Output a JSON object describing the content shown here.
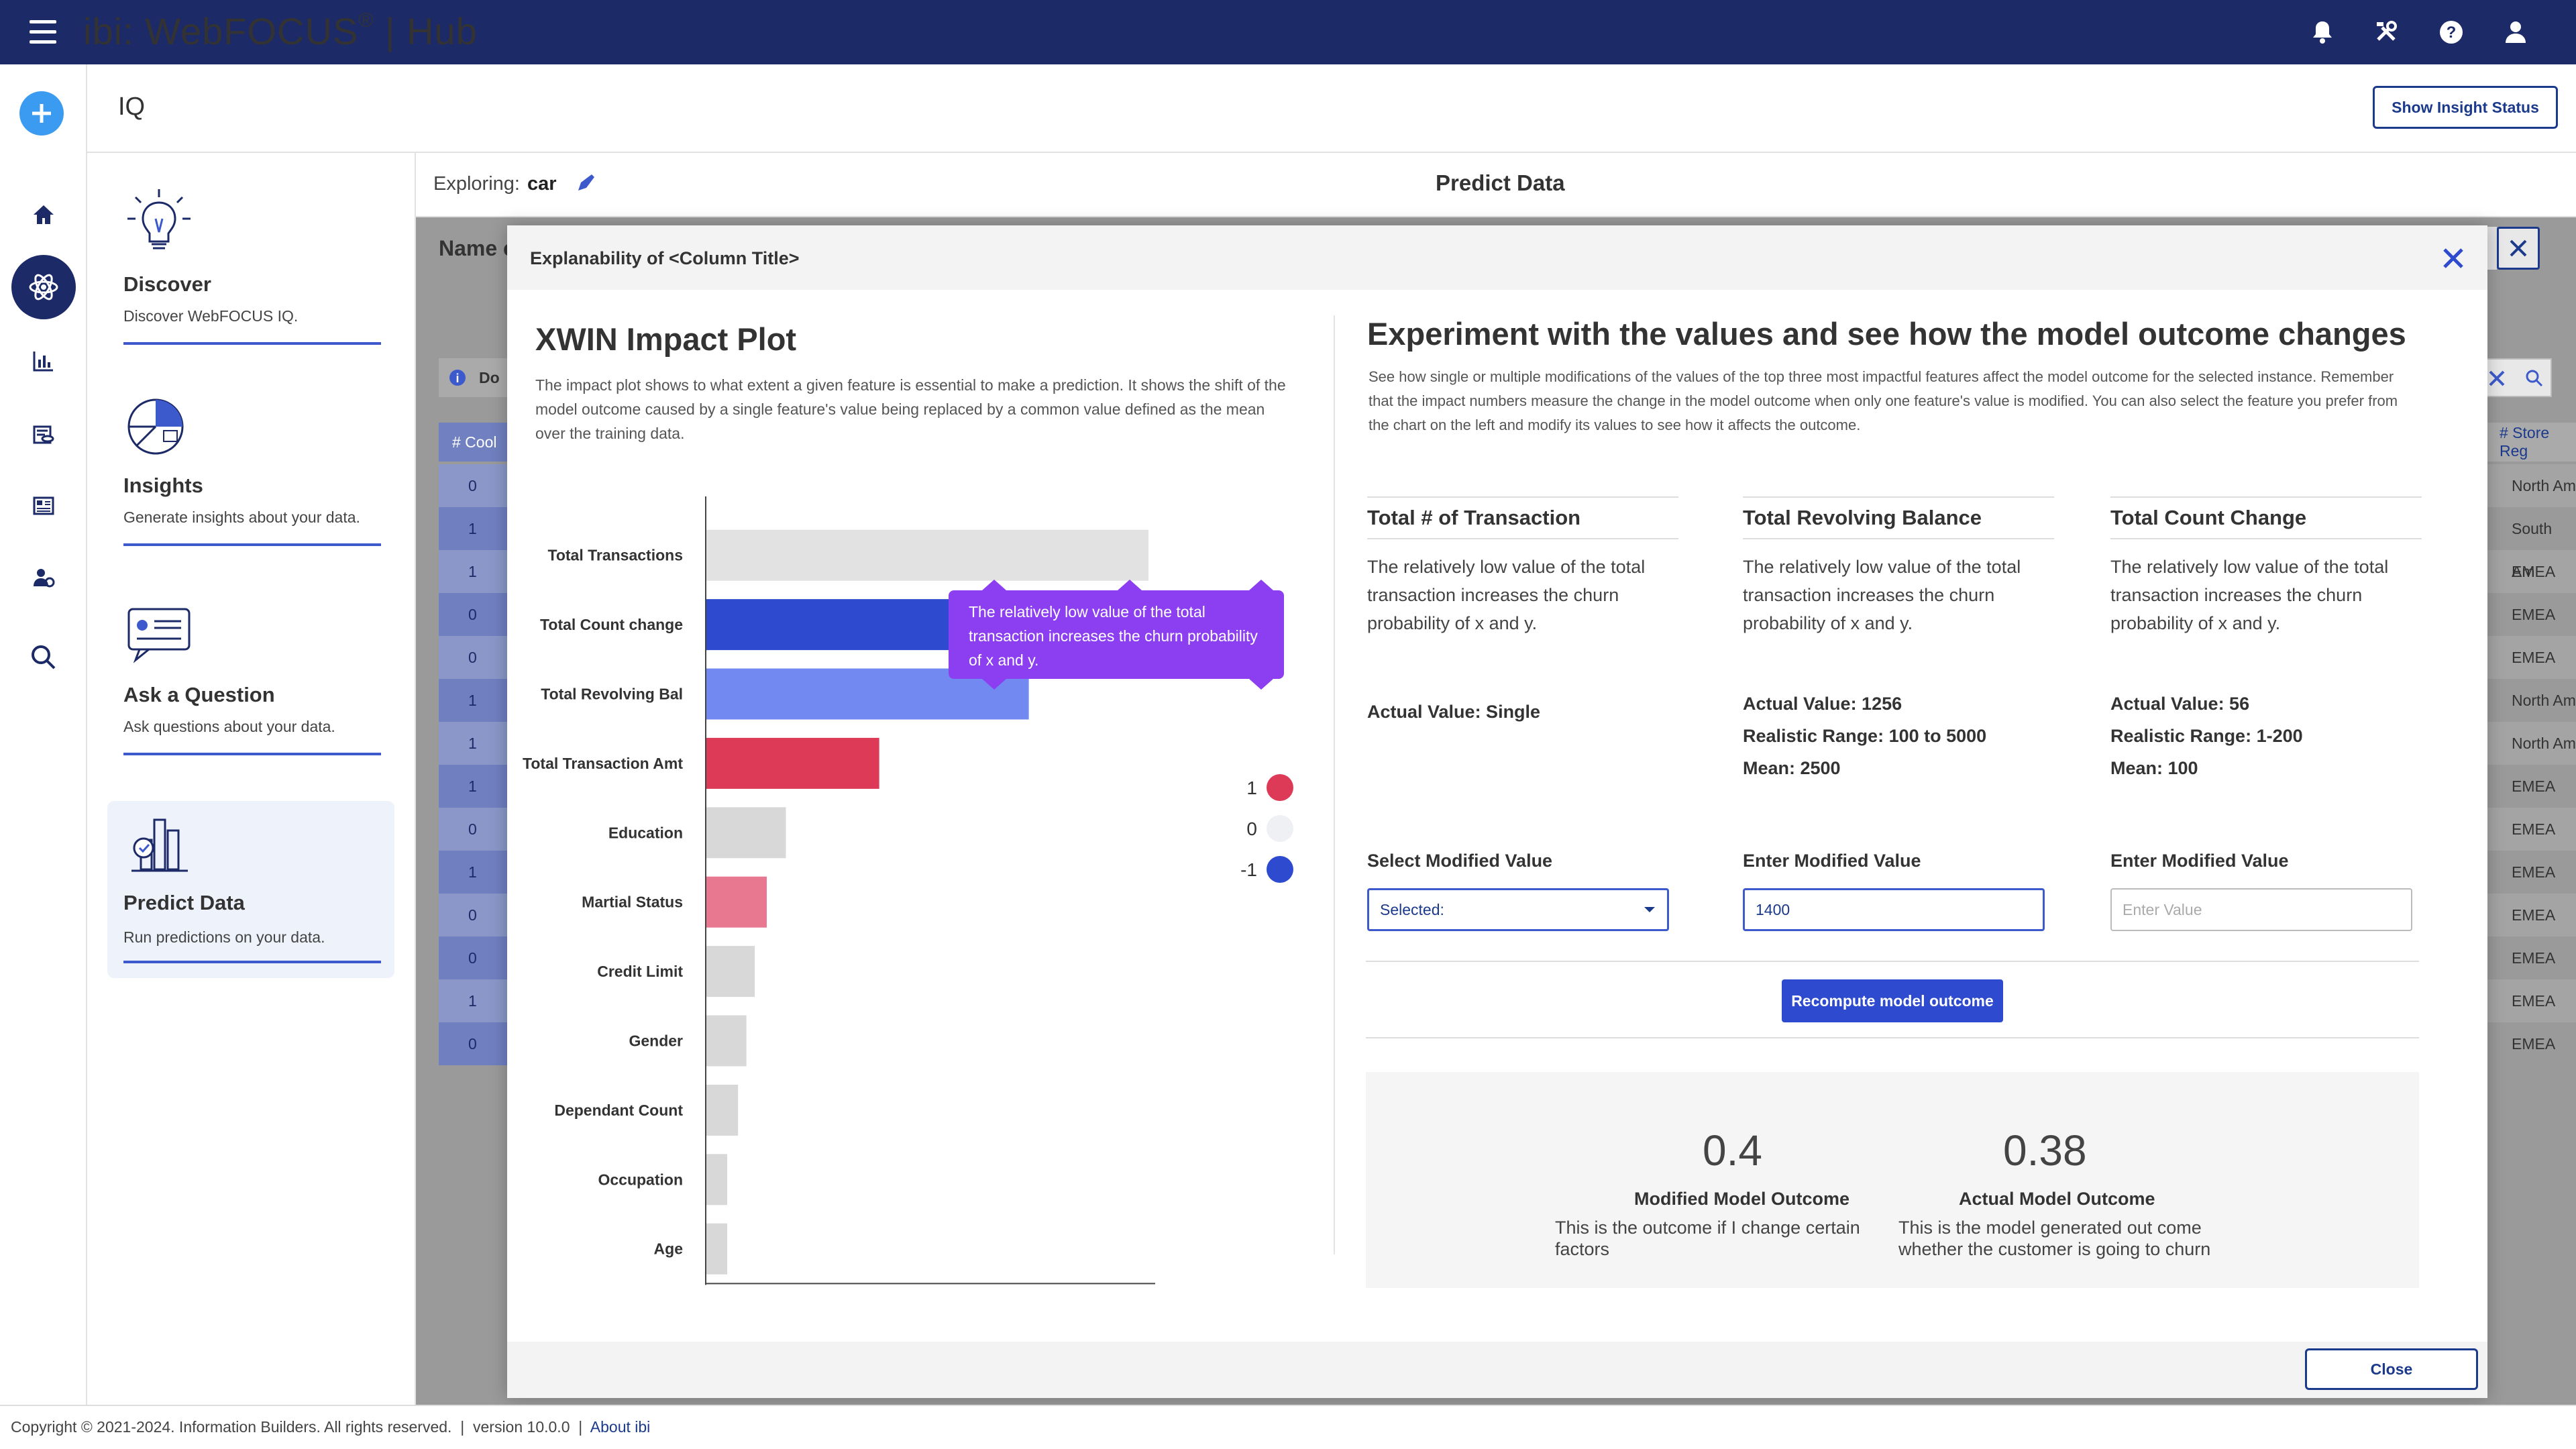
{
  "app": {
    "brand": "ibi",
    "product": "WebFOCUS",
    "section": "Hub"
  },
  "topbar_icons": [
    "bell-icon",
    "tools-icon",
    "help-icon",
    "user-icon"
  ],
  "rail_icons": [
    "plus-icon",
    "home-icon",
    "iq-icon",
    "reports-icon",
    "data-icon",
    "dashboard-icon",
    "people-icon",
    "search-icon"
  ],
  "page": {
    "title": "IQ",
    "show_insight_status": "Show Insight Status"
  },
  "nav": [
    {
      "title": "Discover",
      "desc": "Discover WebFOCUS IQ."
    },
    {
      "title": "Insights",
      "desc": "Generate insights about your data."
    },
    {
      "title": "Ask a Question",
      "desc": "Ask questions about your data."
    },
    {
      "title": "Predict Data",
      "desc": "Run predictions on your data."
    }
  ],
  "explore": {
    "label": "Exploring:",
    "value": "car",
    "predict_title": "Predict Data"
  },
  "background": {
    "name_fragment": "Name c",
    "do_fragment": "Do",
    "col_left": "# Cool",
    "col_right": "# Store Reg",
    "rows_left": [
      "0",
      "1",
      "1",
      "0",
      "0",
      "1",
      "1",
      "1",
      "0",
      "1",
      "0",
      "0",
      "1",
      "0"
    ],
    "rows_right": [
      "North Am",
      "South Am",
      "EMEA",
      "EMEA",
      "EMEA",
      "North Am",
      "North Am",
      "EMEA",
      "EMEA",
      "EMEA",
      "EMEA",
      "EMEA",
      "EMEA",
      "EMEA"
    ]
  },
  "modal": {
    "title": "Explanability of <Column Title>",
    "close_label": "Close"
  },
  "plot": {
    "title": "XWIN Impact Plot",
    "desc": "The impact plot shows to what extent a given feature is essential to make a prediction. It shows the shift of the model outcome caused by a single feature's value being replaced by a common value defined as the mean over the training data.",
    "tooltip": "The relatively low value of the total transaction increases the churn probability of x and y."
  },
  "chart_data": {
    "type": "bar",
    "orientation": "horizontal",
    "categories": [
      "Total Transactions",
      "Total Count change",
      "Total Revolving Bal",
      "Total Transaction Amt",
      "Education",
      "Martial Status",
      "Credit Limit",
      "Gender",
      "Dependant Count",
      "Occupation",
      "Age"
    ],
    "values": [
      0.37,
      0.23,
      0.27,
      0.145,
      0.067,
      0.051,
      0.041,
      0.034,
      0.027,
      0.018,
      0.018
    ],
    "colors": [
      "#e2e2e2",
      "#2e4bd0",
      "#7189f0",
      "#dc3a57",
      "#d8d8d8",
      "#e87890",
      "#d8d8d8",
      "#d8d8d8",
      "#d8d8d8",
      "#d8d8d8",
      "#d8d8d8"
    ],
    "xticks": [
      0,
      0.05,
      0.1,
      0.15,
      0.2,
      0.25,
      0.3,
      0.35
    ],
    "xtick_labels": [
      "0",
      "0.05",
      "0.1",
      "0.15",
      "0.2",
      "0.25",
      "0.3",
      "0.35"
    ],
    "xlim": [
      0,
      0.37
    ],
    "legend": [
      {
        "label": "1",
        "color": "#dc3a57"
      },
      {
        "label": "0",
        "color": "#eef0f4"
      },
      {
        "label": "-1",
        "color": "#2e4bd0"
      }
    ],
    "legend_position": "right"
  },
  "experiment": {
    "title": "Experiment with the values and see how the model outcome changes",
    "desc": "See how single or multiple modifications of the values of the top three most impactful features affect the model outcome for the selected instance. Remember that the impact numbers measure the change in the model outcome when only one feature's value is modified. You can also select the feature you prefer from the chart on the left and modify its values to see how it affects the outcome.",
    "features": [
      {
        "title": "Total # of Transaction",
        "desc": "The relatively low value of the total transaction increases the churn probability of x and y.",
        "stats": [
          "Actual Value: Single"
        ],
        "input_label": "Select Modified Value",
        "input_value": "Selected:",
        "kind": "select"
      },
      {
        "title": "Total Revolving Balance",
        "desc": "The relatively low value of the total transaction increases the churn probability of x and y.",
        "stats": [
          "Actual Value: 1256",
          "Realistic Range: 100 to 5000",
          "Mean: 2500"
        ],
        "input_label": "Enter Modified Value",
        "input_value": "1400",
        "kind": "input"
      },
      {
        "title": "Total Count Change",
        "desc": "The relatively low value of the total transaction increases the churn probability of x and y.",
        "stats": [
          "Actual Value: 56",
          "Realistic Range: 1-200",
          "Mean: 100"
        ],
        "input_label": "Enter Modified Value",
        "input_placeholder": "Enter Value",
        "kind": "input-empty"
      }
    ],
    "recompute_label": "Recompute model outcome",
    "outcomes": [
      {
        "value": "0.4",
        "title": "Modified Model Outcome",
        "desc": "This is the outcome if I change certain factors"
      },
      {
        "value": "0.38",
        "title": "Actual Model Outcome",
        "desc": "This is the model generated out come whether the customer is going to churn"
      }
    ]
  },
  "footer": {
    "copyright": "Copyright © 2021-2024. Information Builders. All rights reserved.",
    "version": "version 10.0.0",
    "about": "About ibi"
  }
}
